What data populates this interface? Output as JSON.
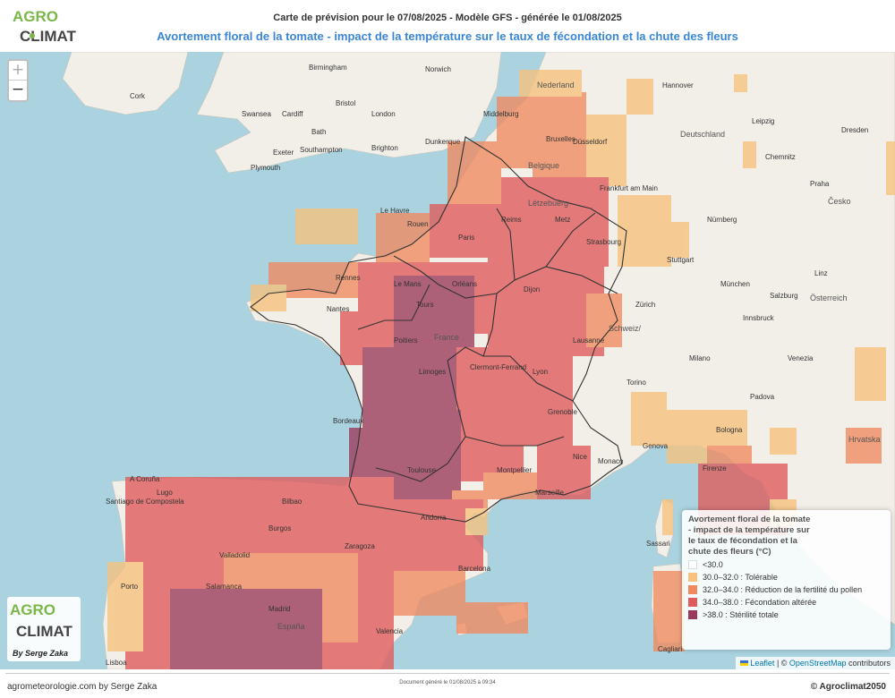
{
  "header": {
    "title": "Carte de prévision pour le 07/08/2025 - Modèle GFS - générée le 01/08/2025",
    "subtitle": "Avortement floral de la tomate - impact de la température sur le taux de fécondation et la chute des fleurs"
  },
  "logo": {
    "line1": "AGRO",
    "line2": "CLIMAT",
    "byline": "By Serge Zaka"
  },
  "zoom": {
    "in": "+",
    "out": "−"
  },
  "legend": {
    "title": "Avortement floral de la tomate - impact de la température sur le taux de fécondation et la chute des fleurs (°C)",
    "items": [
      {
        "label": "<30.0",
        "color": "#ffffff"
      },
      {
        "label": "30.0–32.0 : Tolérable",
        "color": "#f6c27c"
      },
      {
        "label": "32.0–34.0 : Réduction de la fertilité du pollen",
        "color": "#f08a5e"
      },
      {
        "label": "34.0–38.0 : Fécondation altérée",
        "color": "#df5a5a"
      },
      {
        "label": ">38.0 : Stérilité totale",
        "color": "#9a3a5a"
      }
    ]
  },
  "attribution": {
    "leaflet": "Leaflet",
    "sep": " | © ",
    "osm": "OpenStreetMap",
    "tail": " contributors"
  },
  "footer": {
    "left": "agrometeorologie.com by Serge Zaka",
    "center": "Document généré le 01/08/2025 à 09:34",
    "right": "© Agroclimat2050"
  },
  "map_labels": {
    "countries": [
      "France",
      "España",
      "Deutschland",
      "Belgique / België / Belgien",
      "Nederland",
      "Italia",
      "Schweiz/Suisse/Svizzera/Svizra",
      "Österreich",
      "Česko",
      "Hrvatska",
      "Lëtzebuerg"
    ],
    "cities": [
      "Birmingham",
      "Norwich",
      "Cork",
      "Swansea",
      "Cardiff",
      "London",
      "Bath",
      "Bristol",
      "Southampton",
      "Plymouth",
      "Exeter",
      "Brighton",
      "Dunkerque",
      "Middelburg",
      "Antwerpen",
      "Bruxelles",
      "Düsseldorf",
      "Hannover",
      "Leipzig",
      "Dresden",
      "Chemnitz",
      "Praha",
      "Frankfurt am Main",
      "Nürnberg",
      "Stuttgart",
      "München",
      "Salzburg",
      "Linz",
      "Innsbruck",
      "Zürich",
      "Lausanne",
      "Le Havre",
      "Rouen",
      "Paris",
      "Reims",
      "Metz",
      "Strasbourg",
      "Rennes",
      "Nantes",
      "Le Mans",
      "Tours",
      "Orléans",
      "Dijon",
      "Poitiers",
      "Limoges",
      "Clermont-Ferrand",
      "Lyon",
      "Grenoble",
      "Bordeaux",
      "Toulouse",
      "Montpellier",
      "Marseille",
      "Nice",
      "Monaco",
      "Genova",
      "Milano",
      "Torino",
      "Venezia",
      "Bologna",
      "Firenze",
      "Padova",
      "Andorra",
      "Barcelona",
      "Zaragoza",
      "Madrid",
      "Valencia",
      "Lugo",
      "A Coruña",
      "Santiago de Compostela",
      "Porto",
      "Lisboa",
      "Salamanca",
      "Valladolid",
      "Burgos",
      "Bilbao",
      "Sassari",
      "Cagliari"
    ]
  },
  "colors": {
    "sea": "#aad3df",
    "land": "#f2efe9",
    "class_tolerable": "#f6c27c",
    "class_reduction": "#f08a5e",
    "class_alteree": "#df5a5a",
    "class_sterilite": "#9a3a5a",
    "title_blue": "#3a86d4"
  }
}
